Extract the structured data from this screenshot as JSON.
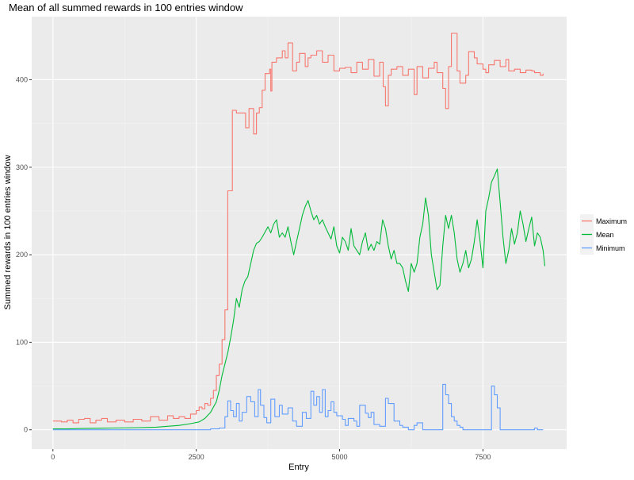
{
  "chart_data": {
    "type": "line",
    "title": "Mean of all summed rewards in 100 entries window",
    "xlabel": "Entry",
    "ylabel": "Summed rewards in 100 entries window",
    "xlim": [
      -370,
      8960
    ],
    "ylim": [
      -22,
      472
    ],
    "x_ticks": [
      0,
      2500,
      5000,
      7500
    ],
    "x_tick_labels": [
      "0",
      "2500",
      "5000",
      "7500"
    ],
    "y_ticks": [
      0,
      100,
      200,
      300,
      400
    ],
    "y_tick_labels": [
      "0",
      "100",
      "200",
      "300",
      "400"
    ],
    "grid": true,
    "legend": {
      "position": "right",
      "title": ""
    },
    "series": [
      {
        "name": "Maximum",
        "color": "#F8766D",
        "step": true,
        "points": [
          [
            0,
            10
          ],
          [
            150,
            9
          ],
          [
            250,
            11
          ],
          [
            350,
            8
          ],
          [
            450,
            12
          ],
          [
            550,
            13
          ],
          [
            650,
            8
          ],
          [
            750,
            11
          ],
          [
            850,
            13
          ],
          [
            950,
            9
          ],
          [
            1100,
            11
          ],
          [
            1250,
            9
          ],
          [
            1400,
            12
          ],
          [
            1550,
            10
          ],
          [
            1700,
            15
          ],
          [
            1850,
            11
          ],
          [
            2000,
            16
          ],
          [
            2100,
            13
          ],
          [
            2200,
            15
          ],
          [
            2300,
            13
          ],
          [
            2400,
            18
          ],
          [
            2500,
            22
          ],
          [
            2550,
            26
          ],
          [
            2600,
            24
          ],
          [
            2650,
            30
          ],
          [
            2700,
            28
          ],
          [
            2750,
            36
          ],
          [
            2800,
            45
          ],
          [
            2850,
            62
          ],
          [
            2900,
            75
          ],
          [
            2950,
            103
          ],
          [
            3000,
            137
          ],
          [
            3050,
            273
          ],
          [
            3100,
            273
          ],
          [
            3130,
            365
          ],
          [
            3200,
            362
          ],
          [
            3300,
            362
          ],
          [
            3360,
            345
          ],
          [
            3420,
            367
          ],
          [
            3500,
            338
          ],
          [
            3550,
            362
          ],
          [
            3600,
            368
          ],
          [
            3650,
            388
          ],
          [
            3700,
            407
          ],
          [
            3780,
            412
          ],
          [
            3800,
            387
          ],
          [
            3820,
            420
          ],
          [
            3900,
            425
          ],
          [
            4000,
            433
          ],
          [
            4050,
            425
          ],
          [
            4100,
            442
          ],
          [
            4180,
            410
          ],
          [
            4250,
            420
          ],
          [
            4300,
            430
          ],
          [
            4400,
            415
          ],
          [
            4450,
            425
          ],
          [
            4500,
            428
          ],
          [
            4600,
            433
          ],
          [
            4700,
            420
          ],
          [
            4800,
            428
          ],
          [
            4900,
            410
          ],
          [
            5000,
            413
          ],
          [
            5100,
            414
          ],
          [
            5200,
            408
          ],
          [
            5300,
            420
          ],
          [
            5400,
            412
          ],
          [
            5500,
            423
          ],
          [
            5600,
            404
          ],
          [
            5700,
            420
          ],
          [
            5760,
            392
          ],
          [
            5800,
            370
          ],
          [
            5850,
            405
          ],
          [
            5900,
            412
          ],
          [
            6000,
            415
          ],
          [
            6100,
            405
          ],
          [
            6200,
            412
          ],
          [
            6300,
            383
          ],
          [
            6350,
            415
          ],
          [
            6450,
            402
          ],
          [
            6550,
            413
          ],
          [
            6650,
            420
          ],
          [
            6700,
            408
          ],
          [
            6800,
            390
          ],
          [
            6850,
            367
          ],
          [
            6900,
            415
          ],
          [
            6950,
            453
          ],
          [
            7050,
            410
          ],
          [
            7100,
            396
          ],
          [
            7200,
            405
          ],
          [
            7250,
            432
          ],
          [
            7350,
            425
          ],
          [
            7400,
            418
          ],
          [
            7500,
            412
          ],
          [
            7550,
            408
          ],
          [
            7600,
            417
          ],
          [
            7700,
            422
          ],
          [
            7800,
            415
          ],
          [
            7900,
            423
          ],
          [
            7950,
            410
          ],
          [
            8050,
            412
          ],
          [
            8150,
            408
          ],
          [
            8250,
            411
          ],
          [
            8350,
            410
          ],
          [
            8400,
            408
          ],
          [
            8500,
            405
          ],
          [
            8550,
            407
          ]
        ]
      },
      {
        "name": "Mean",
        "color": "#00BA38",
        "step": false,
        "points": [
          [
            0,
            1
          ],
          [
            250,
            1
          ],
          [
            500,
            1.5
          ],
          [
            1000,
            2
          ],
          [
            1500,
            2.5
          ],
          [
            1800,
            3
          ],
          [
            2000,
            4
          ],
          [
            2200,
            5
          ],
          [
            2400,
            7
          ],
          [
            2550,
            9
          ],
          [
            2650,
            13
          ],
          [
            2750,
            20
          ],
          [
            2850,
            32
          ],
          [
            2900,
            45
          ],
          [
            2950,
            62
          ],
          [
            3000,
            75
          ],
          [
            3050,
            88
          ],
          [
            3100,
            105
          ],
          [
            3150,
            125
          ],
          [
            3200,
            150
          ],
          [
            3250,
            140
          ],
          [
            3300,
            160
          ],
          [
            3350,
            170
          ],
          [
            3400,
            175
          ],
          [
            3450,
            190
          ],
          [
            3500,
            205
          ],
          [
            3550,
            213
          ],
          [
            3600,
            215
          ],
          [
            3650,
            220
          ],
          [
            3700,
            226
          ],
          [
            3750,
            232
          ],
          [
            3800,
            225
          ],
          [
            3850,
            235
          ],
          [
            3900,
            240
          ],
          [
            3950,
            220
          ],
          [
            4000,
            225
          ],
          [
            4050,
            220
          ],
          [
            4100,
            232
          ],
          [
            4150,
            215
          ],
          [
            4200,
            200
          ],
          [
            4250,
            215
          ],
          [
            4300,
            230
          ],
          [
            4350,
            245
          ],
          [
            4400,
            255
          ],
          [
            4450,
            262
          ],
          [
            4500,
            250
          ],
          [
            4550,
            240
          ],
          [
            4600,
            245
          ],
          [
            4650,
            235
          ],
          [
            4700,
            240
          ],
          [
            4750,
            232
          ],
          [
            4800,
            225
          ],
          [
            4850,
            218
          ],
          [
            4900,
            232
          ],
          [
            4950,
            210
          ],
          [
            5000,
            202
          ],
          [
            5050,
            220
          ],
          [
            5100,
            215
          ],
          [
            5150,
            205
          ],
          [
            5200,
            230
          ],
          [
            5250,
            210
          ],
          [
            5300,
            205
          ],
          [
            5350,
            200
          ],
          [
            5400,
            215
          ],
          [
            5450,
            225
          ],
          [
            5500,
            205
          ],
          [
            5550,
            212
          ],
          [
            5600,
            205
          ],
          [
            5650,
            215
          ],
          [
            5700,
            212
          ],
          [
            5750,
            240
          ],
          [
            5800,
            230
          ],
          [
            5850,
            210
          ],
          [
            5900,
            195
          ],
          [
            5950,
            205
          ],
          [
            6000,
            190
          ],
          [
            6050,
            190
          ],
          [
            6100,
            185
          ],
          [
            6150,
            170
          ],
          [
            6200,
            158
          ],
          [
            6250,
            190
          ],
          [
            6300,
            180
          ],
          [
            6350,
            190
          ],
          [
            6400,
            220
          ],
          [
            6450,
            235
          ],
          [
            6500,
            265
          ],
          [
            6550,
            245
          ],
          [
            6600,
            200
          ],
          [
            6650,
            180
          ],
          [
            6700,
            160
          ],
          [
            6750,
            165
          ],
          [
            6800,
            210
          ],
          [
            6850,
            245
          ],
          [
            6900,
            230
          ],
          [
            6950,
            245
          ],
          [
            7000,
            225
          ],
          [
            7050,
            195
          ],
          [
            7100,
            180
          ],
          [
            7150,
            190
          ],
          [
            7200,
            205
          ],
          [
            7250,
            185
          ],
          [
            7300,
            195
          ],
          [
            7350,
            215
          ],
          [
            7400,
            240
          ],
          [
            7450,
            215
          ],
          [
            7500,
            185
          ],
          [
            7550,
            250
          ],
          [
            7600,
            265
          ],
          [
            7650,
            283
          ],
          [
            7700,
            290
          ],
          [
            7750,
            298
          ],
          [
            7800,
            260
          ],
          [
            7850,
            220
          ],
          [
            7900,
            190
          ],
          [
            7950,
            205
          ],
          [
            8000,
            230
          ],
          [
            8050,
            212
          ],
          [
            8100,
            225
          ],
          [
            8150,
            250
          ],
          [
            8200,
            235
          ],
          [
            8250,
            215
          ],
          [
            8300,
            230
          ],
          [
            8350,
            243
          ],
          [
            8400,
            210
          ],
          [
            8450,
            225
          ],
          [
            8500,
            220
          ],
          [
            8550,
            205
          ],
          [
            8580,
            187
          ]
        ]
      },
      {
        "name": "Minimum",
        "color": "#619CFF",
        "step": true,
        "points": [
          [
            0,
            0
          ],
          [
            2600,
            0
          ],
          [
            2750,
            1
          ],
          [
            2900,
            2
          ],
          [
            3000,
            15
          ],
          [
            3050,
            33
          ],
          [
            3100,
            22
          ],
          [
            3150,
            15
          ],
          [
            3200,
            30
          ],
          [
            3250,
            10
          ],
          [
            3300,
            20
          ],
          [
            3380,
            38
          ],
          [
            3450,
            32
          ],
          [
            3520,
            15
          ],
          [
            3580,
            46
          ],
          [
            3620,
            28
          ],
          [
            3680,
            14
          ],
          [
            3730,
            8
          ],
          [
            3800,
            35
          ],
          [
            3870,
            15
          ],
          [
            3950,
            28
          ],
          [
            4000,
            18
          ],
          [
            4100,
            25
          ],
          [
            4180,
            10
          ],
          [
            4250,
            4
          ],
          [
            4350,
            20
          ],
          [
            4420,
            13
          ],
          [
            4500,
            44
          ],
          [
            4550,
            28
          ],
          [
            4600,
            38
          ],
          [
            4650,
            20
          ],
          [
            4700,
            46
          ],
          [
            4750,
            15
          ],
          [
            4800,
            22
          ],
          [
            4850,
            32
          ],
          [
            4900,
            20
          ],
          [
            4950,
            16
          ],
          [
            5050,
            12
          ],
          [
            5100,
            5
          ],
          [
            5150,
            13
          ],
          [
            5250,
            10
          ],
          [
            5300,
            4
          ],
          [
            5350,
            28
          ],
          [
            5450,
            19
          ],
          [
            5500,
            14
          ],
          [
            5550,
            20
          ],
          [
            5600,
            6
          ],
          [
            5700,
            4
          ],
          [
            5800,
            36
          ],
          [
            5850,
            30
          ],
          [
            5950,
            10
          ],
          [
            6050,
            5
          ],
          [
            6100,
            3
          ],
          [
            6200,
            0
          ],
          [
            6300,
            5
          ],
          [
            6350,
            8
          ],
          [
            6450,
            0
          ],
          [
            6800,
            52
          ],
          [
            6850,
            40
          ],
          [
            6900,
            30
          ],
          [
            6950,
            15
          ],
          [
            7000,
            10
          ],
          [
            7050,
            5
          ],
          [
            7100,
            3
          ],
          [
            7150,
            0
          ],
          [
            7650,
            50
          ],
          [
            7700,
            40
          ],
          [
            7750,
            25
          ],
          [
            7800,
            0
          ],
          [
            8400,
            2
          ],
          [
            8450,
            0
          ],
          [
            8550,
            0
          ]
        ]
      }
    ]
  }
}
